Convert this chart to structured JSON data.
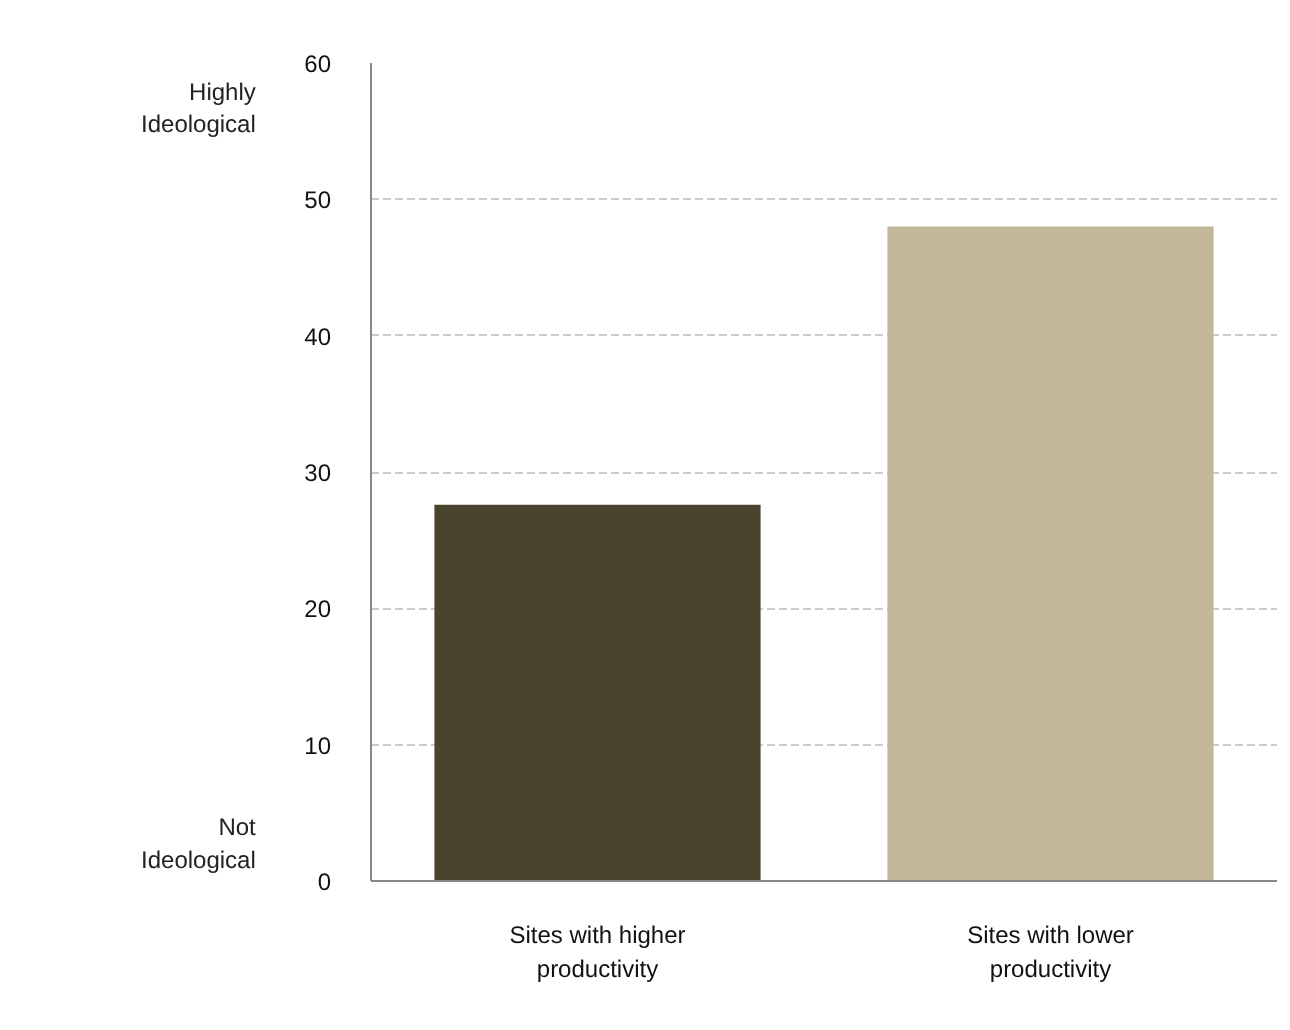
{
  "chart_data": {
    "type": "bar",
    "categories": [
      "Sites with higher productivity",
      "Sites with lower productivity"
    ],
    "values": [
      27.6,
      48
    ],
    "colors": [
      "#4a432d",
      "#c2b799"
    ],
    "ylim": [
      0,
      60
    ],
    "yticks": [
      0,
      10,
      20,
      30,
      40,
      50,
      60
    ],
    "grid": "y",
    "annotations": [
      "Highly Ideological",
      "Not Ideological"
    ]
  }
}
